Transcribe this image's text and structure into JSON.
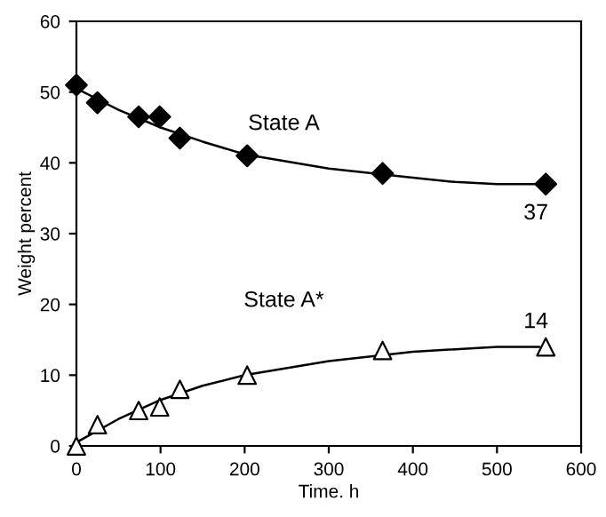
{
  "chart_data": {
    "type": "scatter",
    "xlabel": "Time. h",
    "ylabel": "Weight percent",
    "xlim": [
      0,
      600
    ],
    "ylim": [
      0,
      60
    ],
    "xticks": [
      0,
      100,
      200,
      300,
      400,
      500,
      600
    ],
    "yticks": [
      0,
      10,
      20,
      30,
      40,
      50,
      60
    ],
    "grid": false,
    "legend": false,
    "series": [
      {
        "type": "line",
        "color": "#000000",
        "marker": "none",
        "x": [
          0,
          50,
          100,
          150,
          200,
          300,
          400,
          450,
          500,
          550
        ],
        "values": [
          50.5,
          47.5,
          45,
          43,
          41.2,
          39.2,
          37.9,
          37.3,
          37,
          37
        ]
      },
      {
        "type": "line",
        "color": "#000000",
        "marker": "none",
        "x": [
          0,
          50,
          100,
          150,
          200,
          300,
          400,
          500,
          550
        ],
        "values": [
          0.5,
          3.8,
          6.5,
          8.5,
          10,
          12,
          13.3,
          14,
          14
        ]
      },
      {
        "name": "State A",
        "color": "#000000",
        "marker": "diamond",
        "x": [
          0,
          25,
          74,
          99,
          123,
          203,
          364,
          558
        ],
        "values": [
          51,
          48.5,
          46.5,
          46.5,
          43.5,
          41,
          38.5,
          37
        ],
        "value_labels": [
          null,
          null,
          null,
          null,
          null,
          null,
          null,
          "37"
        ]
      },
      {
        "name": "State A*",
        "color": "#ffffff",
        "marker": "triangle",
        "x": [
          0,
          25,
          74,
          99,
          123,
          203,
          364,
          558
        ],
        "values": [
          0,
          3,
          5,
          5.5,
          8,
          10,
          13.5,
          14
        ],
        "value_labels": [
          null,
          null,
          null,
          null,
          null,
          null,
          null,
          "14"
        ]
      }
    ]
  }
}
